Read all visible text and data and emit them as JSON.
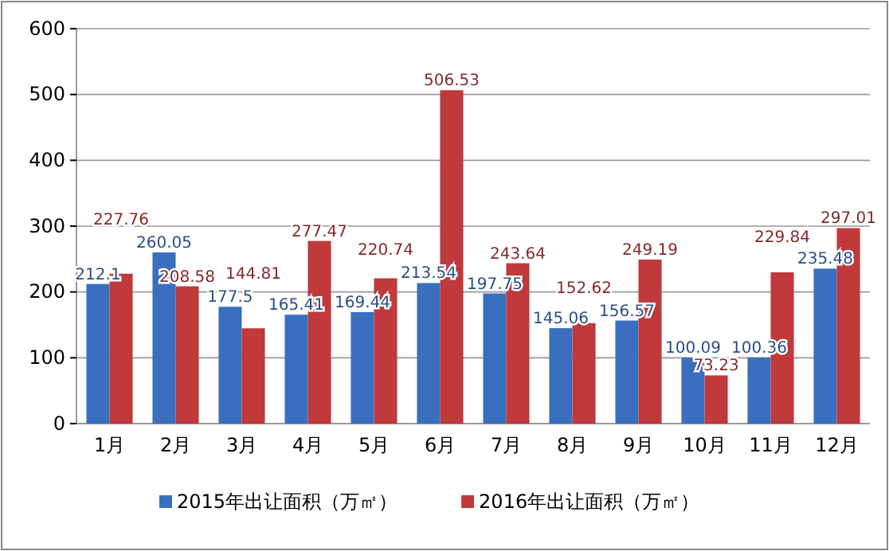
{
  "chart_data": {
    "type": "bar",
    "categories": [
      "1月",
      "2月",
      "3月",
      "4月",
      "5月",
      "6月",
      "7月",
      "8月",
      "9月",
      "10月",
      "11月",
      "12月"
    ],
    "series": [
      {
        "name": "2015年出让面积（万㎡）",
        "color": "#3a6fbf",
        "values": [
          212.1,
          260.05,
          177.5,
          165.41,
          169.44,
          213.54,
          197.75,
          145.06,
          156.57,
          100.09,
          100.36,
          235.48
        ]
      },
      {
        "name": "2016年出让面积（万㎡）",
        "color": "#c0393b",
        "values": [
          227.76,
          208.58,
          144.81,
          277.47,
          220.74,
          506.53,
          243.64,
          152.62,
          249.19,
          73.23,
          229.84,
          297.01
        ]
      }
    ],
    "ylim": [
      0,
      600
    ],
    "yticks": [
      0,
      100,
      200,
      300,
      400,
      500,
      600
    ],
    "grid": "y",
    "data_labels": true,
    "legend": "bottom"
  }
}
